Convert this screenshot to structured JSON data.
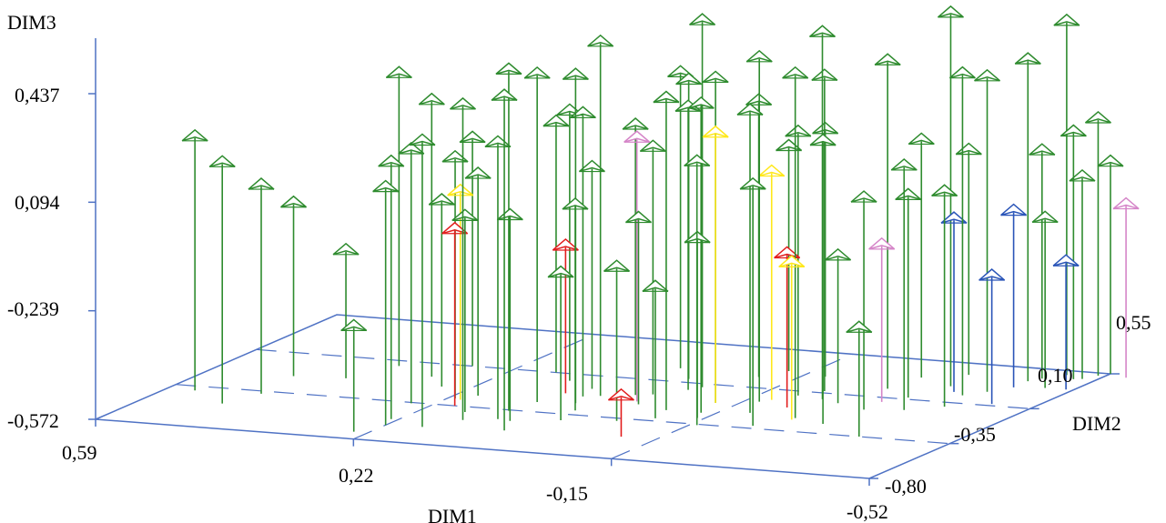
{
  "chart_data": {
    "type": "scatter",
    "projection": "3d",
    "xlabel": "DIM1",
    "ylabel": "DIM2",
    "zlabel": "DIM3",
    "xlim": [
      -0.52,
      0.59
    ],
    "ylim": [
      -0.8,
      0.55
    ],
    "zlim": [
      -0.572,
      0.437
    ],
    "x_ticks": [
      "0,59",
      "0,22",
      "-0,15",
      "-0,52"
    ],
    "y_ticks": [
      "-0,80",
      "-0,35",
      "0,10",
      "0,55"
    ],
    "z_ticks": [
      "-0,572",
      "-0,239",
      "0,094",
      "0,437"
    ],
    "grid": true,
    "colors": {
      "axis": "#4f72c4",
      "green": "#2e8b2e",
      "yellow": "#ffe81a",
      "red": "#e21d1d",
      "blue": "#2a55b8",
      "pink": "#d585c8"
    },
    "series": [
      {
        "color": "green",
        "points": [
          [
            0.55,
            -0.4,
            0.21
          ],
          [
            0.48,
            -0.52,
            0.17
          ],
          [
            0.46,
            -0.38,
            0.07
          ],
          [
            0.47,
            -0.16,
            -0.04
          ],
          [
            0.4,
            -0.14,
            -0.18
          ],
          [
            0.37,
            0.04,
            0.33
          ],
          [
            0.26,
            -0.15,
            0.0
          ],
          [
            0.25,
            -0.36,
            0.21
          ],
          [
            0.21,
            -0.27,
            0.17
          ],
          [
            0.19,
            -0.22,
            0.11
          ],
          [
            0.23,
            -0.55,
            0.22
          ],
          [
            0.22,
            -0.62,
            0.16
          ],
          [
            0.24,
            -0.72,
            -0.25
          ],
          [
            0.17,
            -0.61,
            0.31
          ],
          [
            0.14,
            -0.5,
            0.4
          ],
          [
            0.11,
            -0.36,
            0.48
          ],
          [
            0.1,
            -0.24,
            0.44
          ],
          [
            0.1,
            -0.46,
            0.28
          ],
          [
            0.08,
            -0.47,
            0.06
          ],
          [
            0.06,
            -0.58,
            0.46
          ],
          [
            0.05,
            -0.22,
            0.44
          ],
          [
            0.04,
            -0.12,
            0.52
          ],
          [
            0.02,
            -0.42,
            -0.12
          ],
          [
            0.0,
            -0.08,
            0.26
          ],
          [
            -0.02,
            -0.06,
            0.19
          ],
          [
            -0.03,
            -0.18,
            0.0
          ],
          [
            0.03,
            -0.3,
            0.06
          ],
          [
            0.06,
            -0.14,
            0.3
          ],
          [
            0.07,
            -0.05,
            0.11
          ],
          [
            -0.05,
            0.02,
            0.3
          ],
          [
            -0.06,
            0.06,
            0.56
          ],
          [
            -0.08,
            -0.22,
            0.39
          ],
          [
            -0.09,
            -0.32,
            -0.17
          ],
          [
            -0.12,
            -0.1,
            0.43
          ],
          [
            -0.13,
            -0.22,
            0.38
          ],
          [
            -0.14,
            -0.28,
            -0.02
          ],
          [
            -0.16,
            -0.36,
            0.24
          ],
          [
            -0.17,
            -0.05,
            0.49
          ],
          [
            -0.19,
            -0.18,
            0.36
          ],
          [
            -0.2,
            0.05,
            0.24
          ],
          [
            -0.22,
            0.12,
            0.4
          ],
          [
            -0.23,
            -0.32,
            0.17
          ],
          [
            -0.24,
            0.03,
            0.56
          ],
          [
            -0.26,
            -0.2,
            0.49
          ],
          [
            -0.27,
            0.0,
            -0.12
          ],
          [
            -0.29,
            0.2,
            0.44
          ],
          [
            -0.31,
            -0.24,
            0.3
          ],
          [
            -0.32,
            -0.05,
            0.08
          ],
          [
            -0.34,
            0.12,
            0.05
          ],
          [
            -0.36,
            0.28,
            0.58
          ],
          [
            -0.37,
            -0.02,
            0.18
          ],
          [
            -0.39,
            -0.35,
            -0.24
          ],
          [
            -0.4,
            0.19,
            0.42
          ],
          [
            -0.42,
            0.25,
            0.4
          ],
          [
            -0.44,
            0.4,
            0.42
          ],
          [
            -0.45,
            0.44,
            0.13
          ],
          [
            -0.47,
            0.5,
            0.52
          ],
          [
            -0.48,
            0.34,
            -0.05
          ],
          [
            -0.49,
            0.46,
            0.19
          ],
          [
            -0.5,
            0.47,
            0.05
          ],
          [
            -0.51,
            0.52,
            0.22
          ],
          [
            -0.52,
            0.55,
            0.08
          ],
          [
            -0.3,
            0.35,
            0.16
          ],
          [
            -0.18,
            0.28,
            0.19
          ],
          [
            -0.1,
            0.22,
            0.28
          ],
          [
            -0.02,
            0.14,
            0.35
          ],
          [
            0.12,
            0.02,
            0.26
          ],
          [
            0.16,
            0.1,
            0.2
          ],
          [
            0.28,
            0.1,
            0.13
          ],
          [
            0.3,
            -0.05,
            0.28
          ],
          [
            -0.05,
            -0.38,
            -0.1
          ],
          [
            0.16,
            -0.41,
            0.03
          ],
          [
            -0.35,
            0.42,
            0.12
          ],
          [
            -0.41,
            0.05,
            0.09
          ],
          [
            -0.12,
            0.31,
            0.12
          ],
          [
            0.02,
            0.25,
            0.34
          ]
        ]
      },
      {
        "color": "yellow",
        "points": [
          [
            0.2,
            -0.28,
            0.07
          ],
          [
            -0.12,
            -0.1,
            0.26
          ],
          [
            -0.18,
            -0.02,
            0.13
          ],
          [
            -0.26,
            -0.22,
            -0.09
          ]
        ]
      },
      {
        "color": "red",
        "points": [
          [
            0.19,
            -0.35,
            -0.03
          ],
          [
            0.09,
            -0.12,
            -0.12
          ],
          [
            -0.22,
            -0.09,
            -0.1
          ],
          [
            -0.1,
            -0.55,
            -0.45
          ]
        ]
      },
      {
        "color": "blue",
        "points": [
          [
            -0.38,
            0.22,
            -0.04
          ],
          [
            -0.44,
            0.32,
            -0.03
          ],
          [
            -0.46,
            0.12,
            -0.18
          ],
          [
            -0.51,
            0.34,
            -0.18
          ]
        ]
      },
      {
        "color": "pink",
        "points": [
          [
            -0.02,
            -0.15,
            0.24
          ],
          [
            -0.32,
            0.05,
            -0.09
          ],
          [
            -0.55,
            0.52,
            -0.04
          ]
        ]
      }
    ]
  }
}
